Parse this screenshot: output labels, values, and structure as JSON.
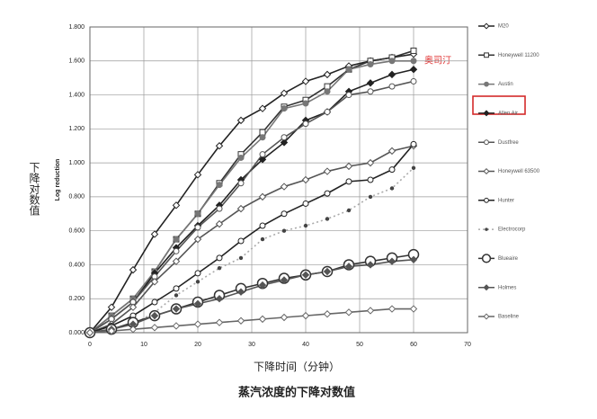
{
  "chart_data": {
    "type": "line",
    "title": "蒸汽浓度的下降对数值",
    "x_label": "下降时间（分钟）",
    "y_label": "Log reduction",
    "y_label_outer": "下降对数值",
    "annotation": "奥司汀",
    "x": [
      0,
      4,
      8,
      12,
      16,
      20,
      24,
      28,
      32,
      36,
      40,
      44,
      48,
      52,
      56,
      60
    ],
    "xlim": [
      0,
      70
    ],
    "xticks": [
      0,
      10,
      20,
      30,
      40,
      50,
      60,
      70
    ],
    "ylim": [
      0,
      1.8
    ],
    "yticks": [
      {
        "value": 0,
        "label": "0.000"
      },
      {
        "value": 0.2,
        "label": "0.200"
      },
      {
        "value": 0.4,
        "label": "0.400"
      },
      {
        "value": 0.6,
        "label": "0.600"
      },
      {
        "value": 0.8,
        "label": "0.800"
      },
      {
        "value": 1.0,
        "label": "1.000"
      },
      {
        "value": 1.2,
        "label": "1.200"
      },
      {
        "value": 1.4,
        "label": "1.400"
      },
      {
        "value": 1.6,
        "label": "1.600"
      },
      {
        "value": 1.8,
        "label": "1.800"
      }
    ],
    "grid": true,
    "series": [
      {
        "name": "M20",
        "color": "#222222",
        "marker": "diamond",
        "line": "solid",
        "values": [
          0,
          0.15,
          0.37,
          0.58,
          0.75,
          0.93,
          1.1,
          1.25,
          1.32,
          1.41,
          1.48,
          1.52,
          1.57,
          1.6,
          1.62,
          1.64
        ]
      },
      {
        "name": "Honeywell 11200",
        "color": "#333333",
        "marker": "square",
        "line": "solid",
        "values": [
          0,
          0.1,
          0.2,
          0.36,
          0.55,
          0.7,
          0.88,
          1.05,
          1.18,
          1.33,
          1.37,
          1.45,
          1.55,
          1.6,
          1.62,
          1.66
        ]
      },
      {
        "name": "Austin",
        "color": "#777777",
        "marker": "filled-circle",
        "line": "solid",
        "values": [
          0,
          0.1,
          0.2,
          0.36,
          0.55,
          0.7,
          0.87,
          1.03,
          1.15,
          1.32,
          1.35,
          1.42,
          1.55,
          1.58,
          1.6,
          1.6
        ]
      },
      {
        "name": "Allen Air",
        "color": "#222222",
        "marker": "filled-diamond",
        "line": "solid",
        "values": [
          0,
          0.08,
          0.18,
          0.35,
          0.5,
          0.63,
          0.75,
          0.9,
          1.02,
          1.12,
          1.25,
          1.3,
          1.42,
          1.47,
          1.52,
          1.55
        ]
      },
      {
        "name": "Dustfree",
        "color": "#555555",
        "marker": "circle",
        "line": "solid",
        "values": [
          0,
          0.08,
          0.18,
          0.33,
          0.48,
          0.62,
          0.73,
          0.88,
          1.05,
          1.15,
          1.23,
          1.3,
          1.4,
          1.42,
          1.45,
          1.48
        ]
      },
      {
        "name": "Honeywell 63500",
        "color": "#555555",
        "marker": "diamond",
        "line": "solid",
        "values": [
          0,
          0.05,
          0.15,
          0.3,
          0.42,
          0.55,
          0.64,
          0.73,
          0.8,
          0.86,
          0.9,
          0.95,
          0.98,
          1.0,
          1.07,
          1.1
        ]
      },
      {
        "name": "Hunter",
        "color": "#222222",
        "marker": "circle",
        "line": "solid",
        "values": [
          0,
          0.04,
          0.1,
          0.18,
          0.26,
          0.35,
          0.44,
          0.54,
          0.63,
          0.7,
          0.76,
          0.82,
          0.89,
          0.9,
          0.96,
          1.11
        ]
      },
      {
        "name": "Electrocorp",
        "color": "#444444",
        "marker": "dot",
        "line": "dotted",
        "values": [
          0,
          0.02,
          0.05,
          0.12,
          0.22,
          0.3,
          0.38,
          0.44,
          0.55,
          0.6,
          0.63,
          0.67,
          0.72,
          0.8,
          0.85,
          0.97
        ]
      },
      {
        "name": "Blueaire",
        "color": "#333333",
        "marker": "big-circle",
        "line": "solid",
        "values": [
          0,
          0.02,
          0.06,
          0.1,
          0.14,
          0.18,
          0.22,
          0.26,
          0.29,
          0.32,
          0.34,
          0.36,
          0.4,
          0.42,
          0.44,
          0.46
        ]
      },
      {
        "name": "Holmes",
        "color": "#555555",
        "marker": "filled-diamond",
        "line": "solid",
        "values": [
          0,
          0.02,
          0.05,
          0.1,
          0.14,
          0.17,
          0.2,
          0.24,
          0.28,
          0.31,
          0.34,
          0.36,
          0.39,
          0.4,
          0.42,
          0.43
        ]
      },
      {
        "name": "Baseline",
        "color": "#666666",
        "marker": "diamond",
        "line": "solid",
        "values": [
          0,
          0.01,
          0.02,
          0.03,
          0.04,
          0.05,
          0.06,
          0.07,
          0.08,
          0.09,
          0.1,
          0.11,
          0.12,
          0.13,
          0.14,
          0.14
        ]
      }
    ]
  }
}
